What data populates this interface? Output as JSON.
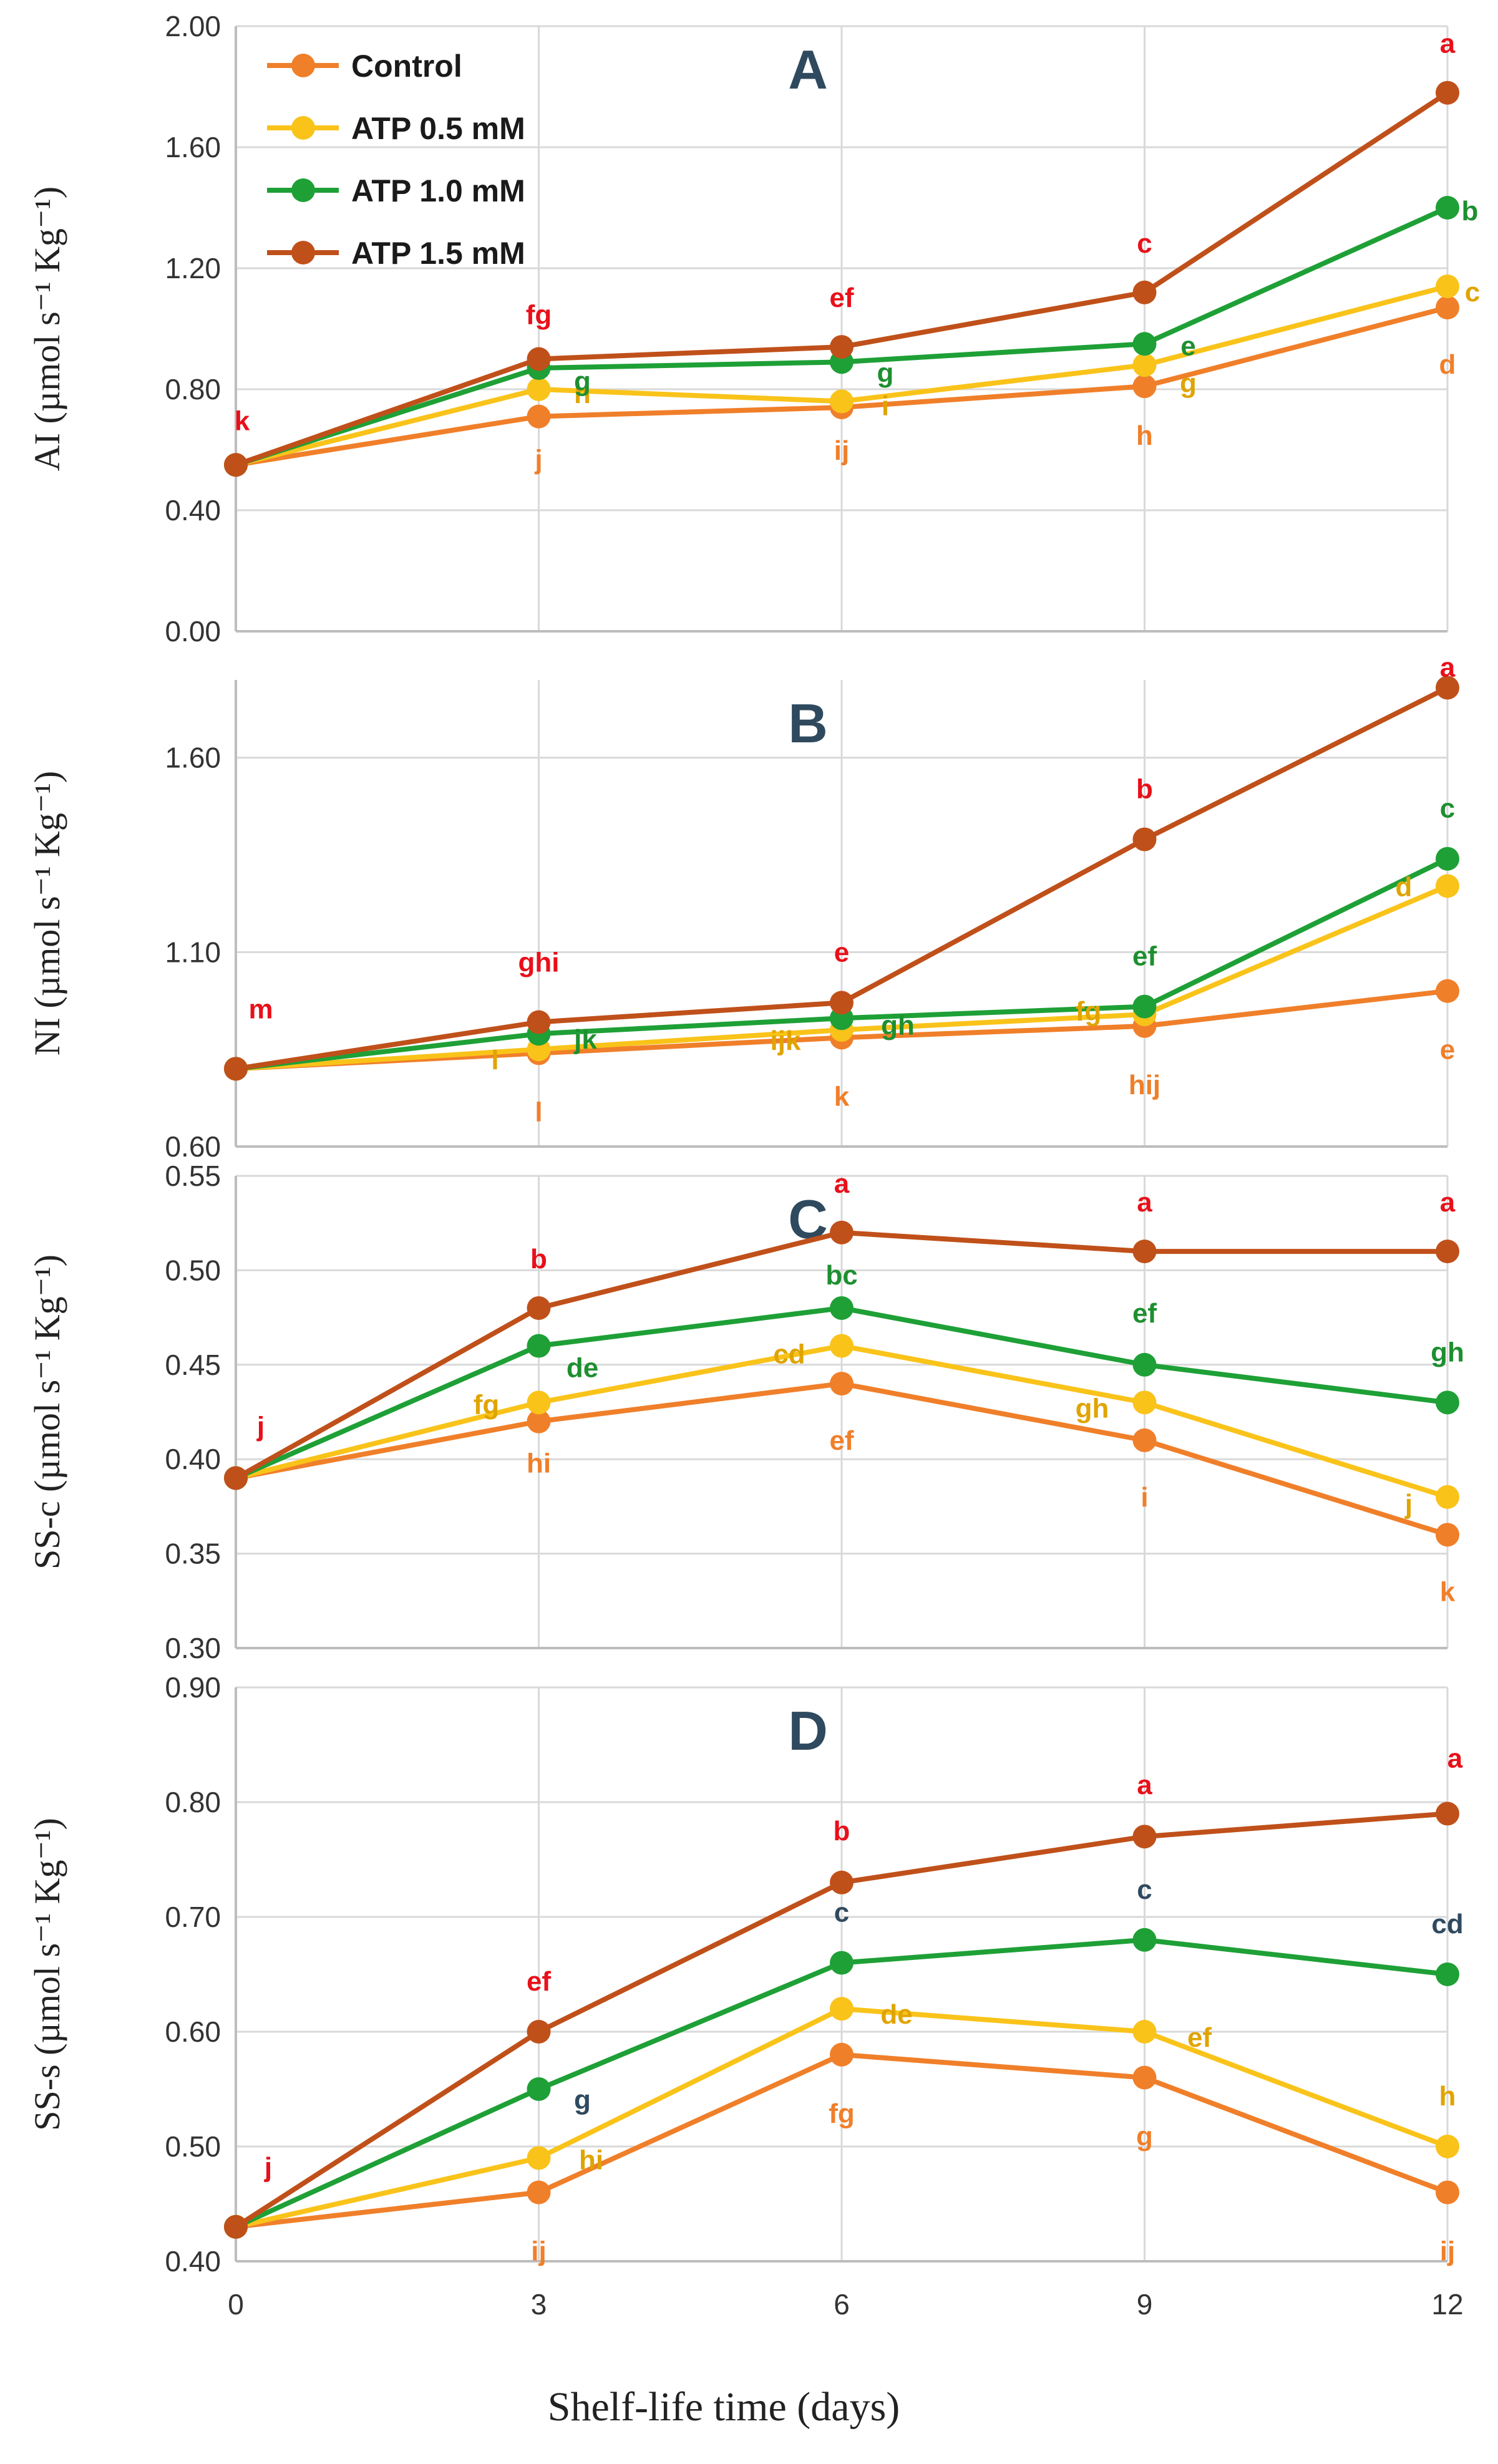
{
  "figure": {
    "x_axis_title": "Shelf-life time (days)",
    "legend": [
      {
        "name": "Control",
        "color": "#f07f2a"
      },
      {
        "name": "ATP 0.5 mM",
        "color": "#f9c31a"
      },
      {
        "name": "ATP 1.0 mM",
        "color": "#1ea036"
      },
      {
        "name": "ATP 1.5 mM",
        "color": "#c0501a"
      }
    ],
    "letter_colors": {
      "Control": "#f07f2a",
      "ATP 0.5 mM": "#e0a400",
      "ATP 1.0 mM": "#1e8f30",
      "ATP 1.5 mM": "#e8101a",
      "dark": "#2f4a5f"
    }
  },
  "chart_data": [
    {
      "type": "line",
      "panel": "A",
      "ylabel": "AI (µmol s⁻¹ Kg⁻¹)",
      "xlabel": "Shelf-life time (days)",
      "x": [
        0,
        3,
        6,
        9,
        12
      ],
      "ylim": [
        0.0,
        2.0
      ],
      "yticks": [
        0.0,
        0.4,
        0.8,
        1.2,
        1.6,
        2.0
      ],
      "ytick_labels": [
        "0.00",
        "0.40",
        "0.80",
        "1.20",
        "1.60",
        "2.00"
      ],
      "series": [
        {
          "name": "Control",
          "values": [
            0.55,
            0.71,
            0.74,
            0.81,
            1.07
          ],
          "letters": [
            "",
            "j",
            "ij",
            "h",
            "d"
          ]
        },
        {
          "name": "ATP 0.5 mM",
          "values": [
            0.55,
            0.8,
            0.76,
            0.88,
            1.14
          ],
          "letters": [
            "",
            "h",
            "i",
            "g",
            "c"
          ]
        },
        {
          "name": "ATP 1.0 mM",
          "values": [
            0.55,
            0.87,
            0.89,
            0.95,
            1.4
          ],
          "letters": [
            "",
            "g",
            "g",
            "e",
            "b"
          ]
        },
        {
          "name": "ATP 1.5 mM",
          "values": [
            0.55,
            0.9,
            0.94,
            1.12,
            1.78
          ],
          "letters": [
            "k",
            "fg",
            "ef",
            "c",
            "a"
          ]
        }
      ]
    },
    {
      "type": "line",
      "panel": "B",
      "ylabel": "NI (µmol s⁻¹ Kg⁻¹)",
      "xlabel": "Shelf-life time (days)",
      "x": [
        0,
        3,
        6,
        9,
        12
      ],
      "ylim": [
        0.6,
        1.8
      ],
      "yticks": [
        0.6,
        1.1,
        1.6
      ],
      "ytick_labels": [
        "0.60",
        "1.10",
        "1.60"
      ],
      "series": [
        {
          "name": "Control",
          "values": [
            0.8,
            0.84,
            0.88,
            0.91,
            1.0
          ],
          "letters": [
            "",
            "l",
            "k",
            "hij",
            "e"
          ]
        },
        {
          "name": "ATP 0.5 mM",
          "values": [
            0.8,
            0.85,
            0.9,
            0.94,
            1.27
          ],
          "letters": [
            "",
            "l",
            "ijk",
            "fg",
            "d"
          ]
        },
        {
          "name": "ATP 1.0 mM",
          "values": [
            0.8,
            0.89,
            0.93,
            0.96,
            1.34
          ],
          "letters": [
            "",
            "jk",
            "gh",
            "ef",
            "c"
          ]
        },
        {
          "name": "ATP 1.5 mM",
          "values": [
            0.8,
            0.92,
            0.97,
            1.39,
            1.78
          ],
          "letters": [
            "m",
            "ghi",
            "e",
            "b",
            "a"
          ]
        }
      ]
    },
    {
      "type": "line",
      "panel": "C",
      "ylabel": "SS-c (µmol s⁻¹ Kg⁻¹)",
      "xlabel": "Shelf-life time (days)",
      "x": [
        0,
        3,
        6,
        9,
        12
      ],
      "ylim": [
        0.3,
        0.55
      ],
      "yticks": [
        0.3,
        0.35,
        0.4,
        0.45,
        0.5,
        0.55
      ],
      "ytick_labels": [
        "0.30",
        "0.35",
        "0.40",
        "0.45",
        "0.50",
        "0.55"
      ],
      "series": [
        {
          "name": "Control",
          "values": [
            0.39,
            0.42,
            0.44,
            0.41,
            0.36
          ],
          "letters": [
            "",
            "hi",
            "ef",
            "i",
            "k"
          ]
        },
        {
          "name": "ATP 0.5 mM",
          "values": [
            0.39,
            0.43,
            0.46,
            0.43,
            0.38
          ],
          "letters": [
            "",
            "fg",
            "cd",
            "gh",
            "j"
          ]
        },
        {
          "name": "ATP 1.0 mM",
          "values": [
            0.39,
            0.46,
            0.48,
            0.45,
            0.43
          ],
          "letters": [
            "",
            "de",
            "bc",
            "ef",
            "gh"
          ]
        },
        {
          "name": "ATP 1.5 mM",
          "values": [
            0.39,
            0.48,
            0.52,
            0.51,
            0.51
          ],
          "letters": [
            "j",
            "b",
            "a",
            "a",
            "a"
          ]
        }
      ]
    },
    {
      "type": "line",
      "panel": "D",
      "ylabel": "SS-s (µmol s⁻¹ Kg⁻¹)",
      "xlabel": "Shelf-life time (days)",
      "x": [
        0,
        3,
        6,
        9,
        12
      ],
      "xtick_labels": [
        "0",
        "3",
        "6",
        "9",
        "12"
      ],
      "ylim": [
        0.4,
        0.9
      ],
      "yticks": [
        0.4,
        0.5,
        0.6,
        0.7,
        0.8,
        0.9
      ],
      "ytick_labels": [
        "0.40",
        "0.50",
        "0.60",
        "0.70",
        "0.80",
        "0.90"
      ],
      "series": [
        {
          "name": "Control",
          "values": [
            0.43,
            0.46,
            0.58,
            0.56,
            0.46
          ],
          "letters": [
            "",
            "ij",
            "fg",
            "g",
            "ij"
          ]
        },
        {
          "name": "ATP 0.5 mM",
          "values": [
            0.43,
            0.49,
            0.62,
            0.6,
            0.5
          ],
          "letters": [
            "",
            "hi",
            "de",
            "ef",
            "h"
          ]
        },
        {
          "name": "ATP 1.0 mM",
          "values": [
            0.43,
            0.55,
            0.66,
            0.68,
            0.65
          ],
          "letters": [
            "",
            "g",
            "c",
            "c",
            "cd"
          ]
        },
        {
          "name": "ATP 1.5 mM",
          "values": [
            0.43,
            0.6,
            0.73,
            0.77,
            0.79
          ],
          "letters": [
            "j",
            "ef",
            "b",
            "a",
            "a"
          ]
        }
      ]
    }
  ]
}
